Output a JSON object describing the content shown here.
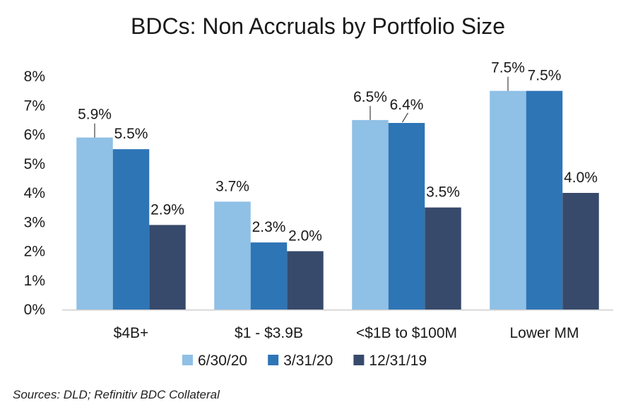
{
  "source_note": "Sources: DLD; Refinitiv BDC Collateral",
  "chart_data": {
    "type": "bar",
    "title": "BDCs: Non Accruals by Portfolio Size",
    "xlabel": "",
    "ylabel": "",
    "ylim": [
      0,
      8
    ],
    "yticks": [
      "0%",
      "1%",
      "2%",
      "3%",
      "4%",
      "5%",
      "6%",
      "7%",
      "8%"
    ],
    "grid": false,
    "legend_position": "bottom",
    "categories": [
      "$4B+",
      "$1 - $3.9B",
      "<$1B to $100M",
      "Lower MM"
    ],
    "series": [
      {
        "name": "6/30/20",
        "color": "#8fc0e6",
        "values": [
          5.9,
          3.7,
          6.5,
          7.5
        ],
        "labels": [
          "5.9%",
          "3.7%",
          "6.5%",
          "7.5%"
        ]
      },
      {
        "name": "3/31/20",
        "color": "#2e75b6",
        "values": [
          5.5,
          2.3,
          6.4,
          7.5
        ],
        "labels": [
          "5.5%",
          "2.3%",
          "6.4%",
          "7.5%"
        ]
      },
      {
        "name": "12/31/19",
        "color": "#374a6b",
        "values": [
          2.9,
          2.0,
          3.5,
          4.0
        ],
        "labels": [
          "2.9%",
          "2.0%",
          "3.5%",
          "4.0%"
        ]
      }
    ]
  }
}
